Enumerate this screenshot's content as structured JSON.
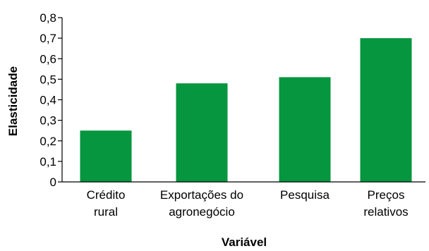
{
  "chart_data": {
    "type": "bar",
    "categories": [
      [
        "Crédito",
        "rural"
      ],
      [
        "Exportações do",
        "agronegócio"
      ],
      [
        "Pesquisa"
      ],
      [
        "Preços",
        "relativos"
      ]
    ],
    "values": [
      0.25,
      0.48,
      0.51,
      0.7
    ],
    "xlabel": "Variável",
    "ylabel": "Elasticidade",
    "ylim": [
      0,
      0.8
    ],
    "yticks": [
      "0",
      "0,1",
      "0,2",
      "0,3",
      "0,4",
      "0,5",
      "0,6",
      "0,7",
      "0,8"
    ],
    "bar_color": "#05963f",
    "grid": false,
    "legend": "none"
  }
}
